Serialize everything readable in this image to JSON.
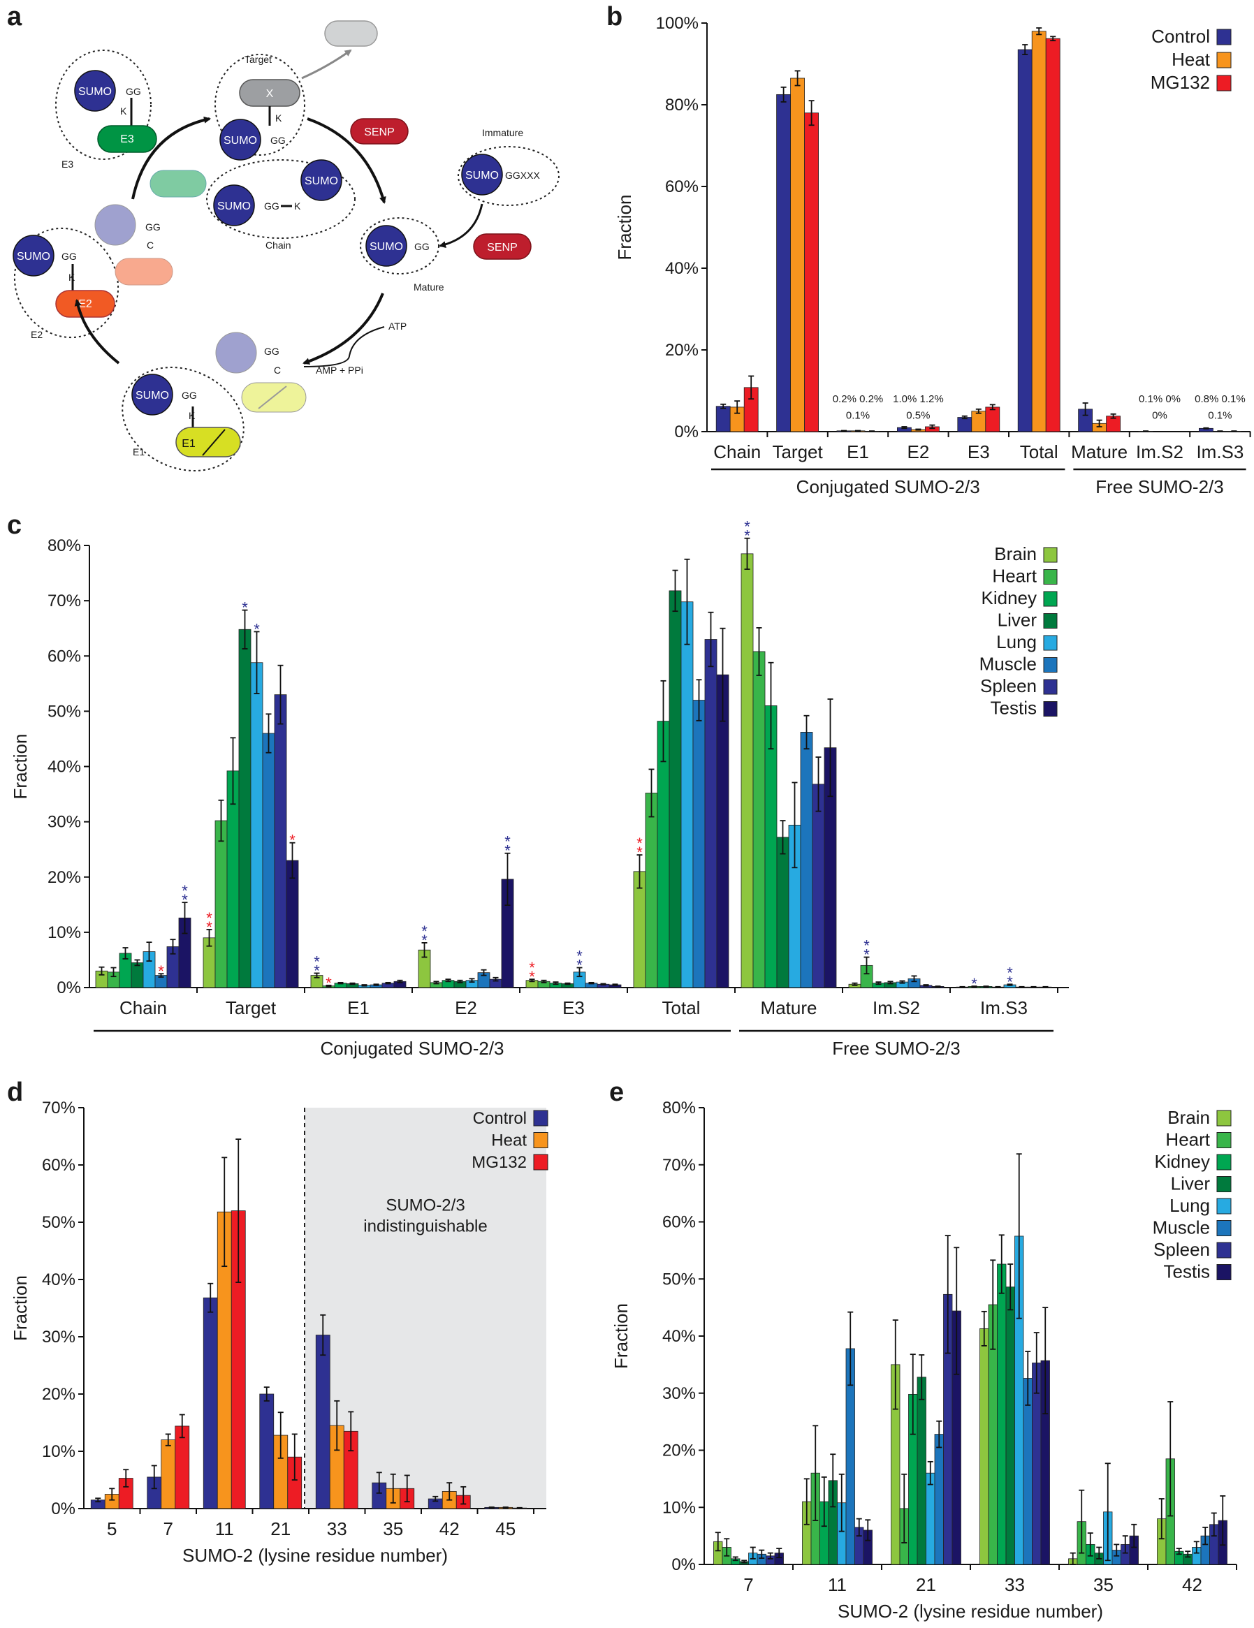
{
  "panel_letters": [
    "a",
    "b",
    "c",
    "d",
    "e"
  ],
  "diagram": {
    "sumo": "SUMO",
    "gg": "GG",
    "k": "K",
    "c": "C",
    "x": "X",
    "ggxxx": "GGXXX",
    "senp": "SENP",
    "e1": "E1",
    "e2": "E2",
    "e3": "E3",
    "atp": "ATP",
    "amp": "AMP + PPi",
    "labels": {
      "target": "Target",
      "chain": "Chain",
      "mature": "Mature",
      "immature": "Immature",
      "e1": "E1",
      "e2": "E2",
      "e3": "E3"
    }
  },
  "colors": {
    "control": "#2e3192",
    "heat": "#f7941d",
    "mg132": "#ed1c24",
    "brain": "#8dc63f",
    "heart": "#39b54a",
    "kidney": "#00a651",
    "liver": "#007a3d",
    "lung": "#27aae1",
    "muscle": "#1c75bc",
    "spleen": "#2e3192",
    "testis": "#1b1464",
    "sumo": "#2e3192",
    "senp": "#be1e2d",
    "e1": "#d7df23",
    "e2": "#f15a24",
    "e3": "#009444",
    "gray": "#bcbec0",
    "shade": "#e6e7e8",
    "sig_blue": "#2e3192",
    "sig_red": "#ed1c24"
  },
  "chart_data": [
    {
      "panel": "b",
      "type": "bar",
      "ylabel": "Fraction",
      "ylim": [
        0,
        100
      ],
      "yticks": [
        "0%",
        "20%",
        "40%",
        "60%",
        "80%",
        "100%"
      ],
      "categories": [
        "Chain",
        "Target",
        "E1",
        "E2",
        "E3",
        "Total",
        "Mature",
        "Im.S2",
        "Im.S3"
      ],
      "groups": [
        {
          "label": "Conjugated SUMO-2/3",
          "from": 0,
          "to": 5
        },
        {
          "label": "Free SUMO-2/3",
          "from": 6,
          "to": 8
        }
      ],
      "legend": "top-right",
      "series": [
        {
          "name": "Control",
          "color": "#2e3192",
          "values": [
            6.2,
            82.5,
            0.2,
            1.0,
            3.5,
            93.5,
            5.5,
            0.1,
            0.8
          ],
          "errors": [
            0.5,
            1.8,
            0.05,
            0.2,
            0.3,
            1.2,
            1.5,
            0.05,
            0.1
          ]
        },
        {
          "name": "Heat",
          "color": "#f7941d",
          "values": [
            6.0,
            86.5,
            0.2,
            0.5,
            5.0,
            98.0,
            2.0,
            0.0,
            0.1
          ],
          "errors": [
            1.5,
            1.8,
            0.05,
            0.1,
            0.5,
            0.8,
            0.8,
            0.0,
            0.05
          ]
        },
        {
          "name": "MG132",
          "color": "#ed1c24",
          "values": [
            10.8,
            78.0,
            0.1,
            1.2,
            6.0,
            96.2,
            3.8,
            0.0,
            0.1
          ],
          "errors": [
            2.8,
            3.0,
            0.05,
            0.4,
            0.6,
            0.5,
            0.5,
            0.0,
            0.05
          ]
        }
      ],
      "annotations": [
        {
          "cat": 2,
          "top": "0.2% 0.2%",
          "bottom": "0.1%"
        },
        {
          "cat": 3,
          "top": "1.0% 1.2%",
          "bottom": "0.5%"
        },
        {
          "cat": 7,
          "top": "0.1%   0%",
          "bottom": "0%"
        },
        {
          "cat": 8,
          "top": "0.8% 0.1%",
          "bottom": "0.1%"
        }
      ]
    },
    {
      "panel": "c",
      "type": "bar",
      "ylabel": "Fraction",
      "ylim": [
        0,
        80
      ],
      "yticks": [
        "0%",
        "10%",
        "20%",
        "30%",
        "40%",
        "50%",
        "60%",
        "70%",
        "80%"
      ],
      "categories": [
        "Chain",
        "Target",
        "E1",
        "E2",
        "E3",
        "Total",
        "Mature",
        "Im.S2",
        "Im.S3"
      ],
      "groups": [
        {
          "label": "Conjugated SUMO-2/3",
          "from": 0,
          "to": 5
        },
        {
          "label": "Free SUMO-2/3",
          "from": 6,
          "to": 8
        }
      ],
      "legend": "top-right",
      "series": [
        {
          "name": "Brain",
          "color": "#8dc63f",
          "values": [
            3.0,
            9.0,
            2.2,
            6.8,
            1.3,
            21.0,
            78.5,
            0.6,
            0.1
          ],
          "errors": [
            0.7,
            1.5,
            0.4,
            1.3,
            0.2,
            3.0,
            2.8,
            0.2,
            0.05
          ]
        },
        {
          "name": "Heart",
          "color": "#39b54a",
          "values": [
            2.8,
            30.2,
            0.3,
            0.9,
            1.1,
            35.2,
            60.8,
            4.0,
            0.2
          ],
          "errors": [
            0.8,
            3.7,
            0.1,
            0.2,
            0.2,
            4.3,
            4.3,
            1.5,
            0.05
          ]
        },
        {
          "name": "Kidney",
          "color": "#00a651",
          "values": [
            6.2,
            39.2,
            0.8,
            1.3,
            0.8,
            48.2,
            51.0,
            0.8,
            0.2
          ],
          "errors": [
            1.0,
            6.0,
            0.1,
            0.2,
            0.2,
            7.3,
            7.8,
            0.2,
            0.05
          ]
        },
        {
          "name": "Liver",
          "color": "#007a3d",
          "values": [
            4.5,
            64.8,
            0.7,
            1.1,
            0.7,
            71.8,
            27.2,
            0.9,
            0.1
          ],
          "errors": [
            0.5,
            3.5,
            0.1,
            0.2,
            0.1,
            3.7,
            3.0,
            0.2,
            0.05
          ]
        },
        {
          "name": "Lung",
          "color": "#27aae1",
          "values": [
            6.5,
            58.8,
            0.4,
            1.3,
            2.8,
            69.8,
            29.4,
            1.0,
            0.5
          ],
          "errors": [
            1.7,
            5.6,
            0.1,
            0.3,
            0.8,
            7.7,
            7.7,
            0.2,
            0.1
          ]
        },
        {
          "name": "Muscle",
          "color": "#1c75bc",
          "values": [
            2.2,
            46.0,
            0.5,
            2.7,
            0.8,
            52.0,
            46.2,
            1.6,
            0.1
          ],
          "errors": [
            0.3,
            3.5,
            0.1,
            0.5,
            0.1,
            3.7,
            3.0,
            0.5,
            0.05
          ]
        },
        {
          "name": "Spleen",
          "color": "#2e3192",
          "values": [
            7.4,
            53.0,
            0.8,
            1.5,
            0.6,
            63.0,
            36.8,
            0.4,
            0.1
          ],
          "errors": [
            1.3,
            5.3,
            0.1,
            0.3,
            0.1,
            4.9,
            4.9,
            0.1,
            0.05
          ]
        },
        {
          "name": "Testis",
          "color": "#1b1464",
          "values": [
            12.6,
            23.0,
            1.1,
            19.6,
            0.5,
            56.6,
            43.4,
            0.2,
            0.1
          ],
          "errors": [
            2.8,
            3.2,
            0.2,
            4.7,
            0.1,
            8.4,
            8.8,
            0.05,
            0.05
          ]
        }
      ],
      "significance": [
        {
          "cat": 0,
          "series": 5,
          "marks": [
            "red"
          ]
        },
        {
          "cat": 0,
          "series": 7,
          "marks": [
            "blue",
            "blue"
          ]
        },
        {
          "cat": 1,
          "series": 0,
          "marks": [
            "red",
            "red"
          ]
        },
        {
          "cat": 1,
          "series": 3,
          "marks": [
            "blue"
          ]
        },
        {
          "cat": 1,
          "series": 4,
          "marks": [
            "blue"
          ]
        },
        {
          "cat": 1,
          "series": 7,
          "marks": [
            "red"
          ]
        },
        {
          "cat": 2,
          "series": 0,
          "marks": [
            "blue",
            "blue"
          ]
        },
        {
          "cat": 2,
          "series": 1,
          "marks": [
            "red"
          ]
        },
        {
          "cat": 3,
          "series": 0,
          "marks": [
            "blue",
            "blue"
          ]
        },
        {
          "cat": 3,
          "series": 7,
          "marks": [
            "blue",
            "blue"
          ]
        },
        {
          "cat": 4,
          "series": 0,
          "marks": [
            "red",
            "red"
          ]
        },
        {
          "cat": 4,
          "series": 4,
          "marks": [
            "blue",
            "blue"
          ]
        },
        {
          "cat": 5,
          "series": 0,
          "marks": [
            "red",
            "red"
          ]
        },
        {
          "cat": 6,
          "series": 0,
          "marks": [
            "blue",
            "blue"
          ]
        },
        {
          "cat": 7,
          "series": 1,
          "marks": [
            "blue",
            "blue"
          ]
        },
        {
          "cat": 8,
          "series": 1,
          "marks": [
            "blue"
          ]
        },
        {
          "cat": 8,
          "series": 4,
          "marks": [
            "blue",
            "blue"
          ]
        }
      ]
    },
    {
      "panel": "d",
      "type": "bar",
      "xlabel": "SUMO-2 (lysine residue number)",
      "ylabel": "Fraction",
      "ylim": [
        0,
        70
      ],
      "yticks": [
        "0%",
        "10%",
        "20%",
        "30%",
        "40%",
        "50%",
        "60%",
        "70%"
      ],
      "categories": [
        "5",
        "7",
        "11",
        "21",
        "33",
        "35",
        "42",
        "45"
      ],
      "legend": "top-right",
      "shaded_note": "SUMO-2/3 indistinguishable",
      "shaded_from_category": "33",
      "series": [
        {
          "name": "Control",
          "color": "#2e3192",
          "values": [
            1.5,
            5.5,
            36.8,
            20.0,
            30.3,
            4.5,
            1.7,
            0.2
          ],
          "errors": [
            0.3,
            2.0,
            2.5,
            1.2,
            3.5,
            1.8,
            0.4,
            0.05
          ]
        },
        {
          "name": "Heat",
          "color": "#f7941d",
          "values": [
            2.5,
            12.0,
            51.8,
            12.8,
            14.5,
            3.5,
            3.0,
            0.2
          ],
          "errors": [
            1.0,
            1.0,
            9.5,
            4.0,
            4.3,
            2.5,
            1.5,
            0.05
          ]
        },
        {
          "name": "MG132",
          "color": "#ed1c24",
          "values": [
            5.3,
            14.4,
            52.0,
            9.0,
            13.5,
            3.5,
            2.3,
            0.1
          ],
          "errors": [
            1.5,
            2.0,
            12.5,
            4.0,
            3.4,
            2.3,
            1.5,
            0.05
          ]
        }
      ]
    },
    {
      "panel": "e",
      "type": "bar",
      "xlabel": "SUMO-2 (lysine residue number)",
      "ylabel": "Fraction",
      "ylim": [
        0,
        80
      ],
      "yticks": [
        "0%",
        "10%",
        "20%",
        "30%",
        "40%",
        "50%",
        "60%",
        "70%",
        "80%"
      ],
      "categories": [
        "7",
        "11",
        "21",
        "33",
        "35",
        "42"
      ],
      "legend": "top-right",
      "series": [
        {
          "name": "Brain",
          "color": "#8dc63f",
          "values": [
            4.0,
            11.0,
            35.0,
            41.3,
            1.0,
            8.0
          ],
          "errors": [
            1.6,
            4.0,
            7.8,
            3.0,
            1.0,
            3.5
          ]
        },
        {
          "name": "Heart",
          "color": "#39b54a",
          "values": [
            3.0,
            16.0,
            9.8,
            45.5,
            7.5,
            18.5
          ],
          "errors": [
            1.5,
            8.3,
            6.0,
            7.8,
            5.5,
            10.0
          ]
        },
        {
          "name": "Kidney",
          "color": "#00a651",
          "values": [
            1.0,
            11.0,
            29.8,
            52.6,
            3.5,
            2.3
          ],
          "errors": [
            0.3,
            4.3,
            7.0,
            5.1,
            2.0,
            0.5
          ]
        },
        {
          "name": "Liver",
          "color": "#007a3d",
          "values": [
            0.5,
            14.7,
            32.8,
            48.6,
            2.0,
            1.8
          ],
          "errors": [
            0.2,
            4.6,
            3.9,
            4.0,
            1.0,
            0.5
          ]
        },
        {
          "name": "Lung",
          "color": "#27aae1",
          "values": [
            2.0,
            10.8,
            16.0,
            57.5,
            9.2,
            3.0
          ],
          "errors": [
            1.0,
            5.0,
            2.0,
            14.4,
            8.5,
            1.0
          ]
        },
        {
          "name": "Muscle",
          "color": "#1c75bc",
          "values": [
            1.8,
            37.8,
            22.8,
            32.6,
            2.5,
            5.0
          ],
          "errors": [
            0.7,
            6.4,
            2.3,
            4.7,
            1.0,
            1.5
          ]
        },
        {
          "name": "Spleen",
          "color": "#2e3192",
          "values": [
            1.5,
            6.5,
            47.3,
            35.3,
            3.5,
            7.0
          ],
          "errors": [
            0.5,
            1.5,
            10.3,
            5.3,
            1.5,
            2.0
          ]
        },
        {
          "name": "Testis",
          "color": "#1b1464",
          "values": [
            2.0,
            6.0,
            44.4,
            35.7,
            5.0,
            7.7
          ],
          "errors": [
            0.8,
            1.8,
            11.1,
            9.3,
            2.0,
            4.3
          ]
        }
      ]
    }
  ]
}
